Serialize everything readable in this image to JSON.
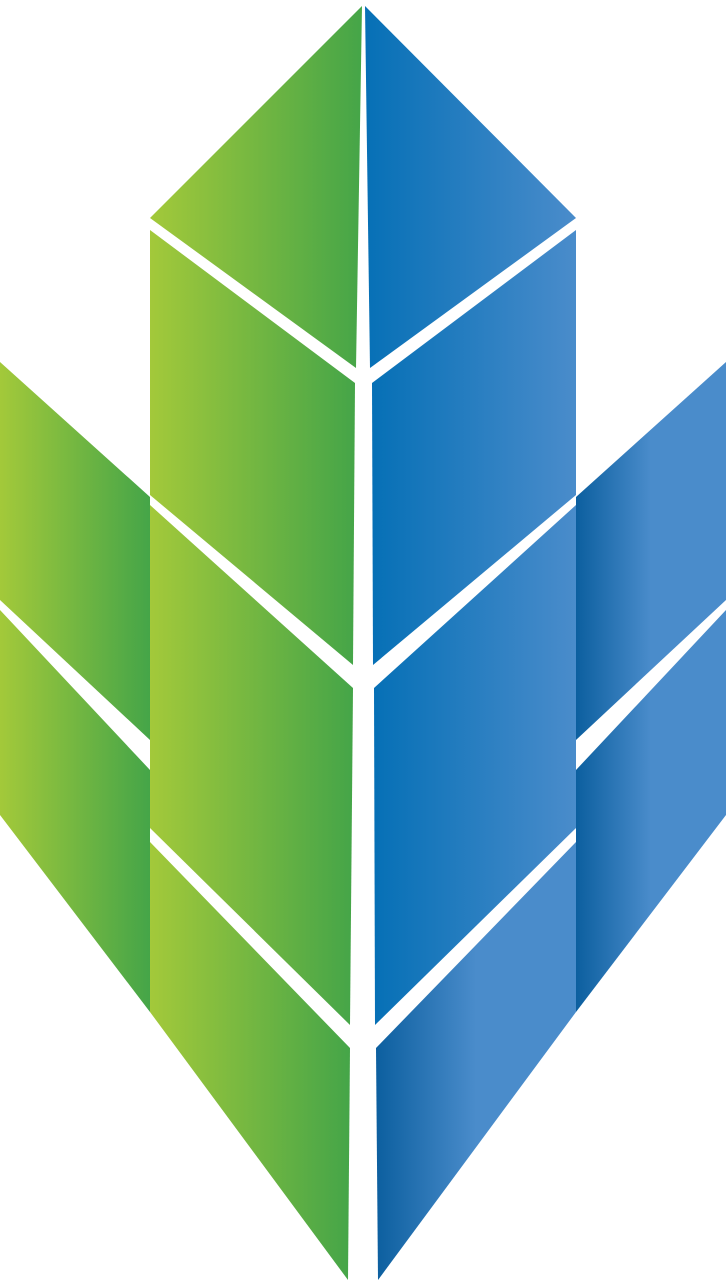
{
  "logo": {
    "icon": "leaf-sprout-logo",
    "colors": {
      "green_light": "#a3c93a",
      "green_dark": "#45a548",
      "blue_dark": "#0670b6",
      "blue_light": "#4a8ccb",
      "blue_deep": "#0c5f9f",
      "background": "#ffffff"
    }
  }
}
